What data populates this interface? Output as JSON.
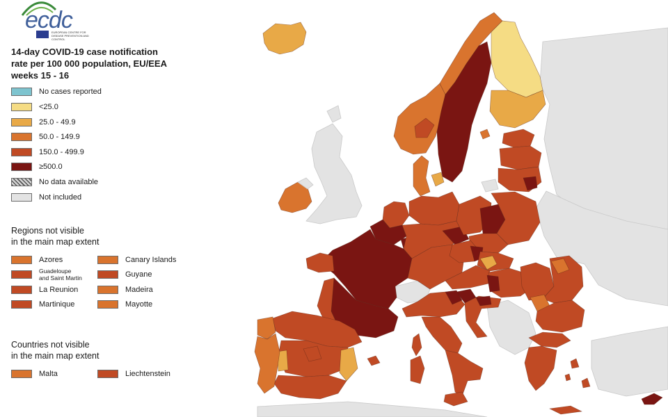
{
  "logo": {
    "name": "ecdc",
    "subtitle": "EUROPEAN CENTRE FOR DISEASE PREVENTION AND CONTROL"
  },
  "title": "14-day COVID-19 case notification\nrate per 100 000 population, EU/EEA\nweeks 15 - 16",
  "legend": [
    {
      "label": "No cases reported",
      "color": "#7ec4cf",
      "pattern": false
    },
    {
      "label": "<25.0",
      "color": "#f5dc84",
      "pattern": false
    },
    {
      "label": "25.0 - 49.9",
      "color": "#e8a947",
      "pattern": false
    },
    {
      "label": "50.0 - 149.9",
      "color": "#d9742e",
      "pattern": false
    },
    {
      "label": "150.0 - 499.9",
      "color": "#c04a24",
      "pattern": false
    },
    {
      "label": "≥500.0",
      "color": "#7a1512",
      "pattern": false
    },
    {
      "label": "No data available",
      "color": "#bdbdbd",
      "pattern": true
    },
    {
      "label": "Not included",
      "color": "#e3e3e3",
      "pattern": false
    }
  ],
  "regions_title": "Regions not visible\nin the main map extent",
  "regions_left": [
    {
      "label": "Azores",
      "color": "#d9742e",
      "small": false
    },
    {
      "label": "Guadeloupe\nand Saint Martin",
      "color": "#c04a24",
      "small": true
    },
    {
      "label": "La Reunion",
      "color": "#c04a24",
      "small": false
    },
    {
      "label": "Martinique",
      "color": "#c04a24",
      "small": false
    }
  ],
  "regions_right": [
    {
      "label": "Canary Islands",
      "color": "#d9742e",
      "small": false
    },
    {
      "label": "Guyane",
      "color": "#c04a24",
      "small": false
    },
    {
      "label": "Madeira",
      "color": "#d9742e",
      "small": false
    },
    {
      "label": "Mayotte",
      "color": "#d9742e",
      "small": false
    }
  ],
  "countries_title": "Countries not visible\nin the main map extent",
  "countries": [
    {
      "label": "Malta",
      "color": "#d9742e"
    },
    {
      "label": "Liechtenstein",
      "color": "#c04a24"
    }
  ],
  "palette": {
    "none": "#7ec4cf",
    "lt25": "#f5dc84",
    "r25": "#e8a947",
    "r50": "#d9742e",
    "r150": "#c04a24",
    "ge500": "#7a1512",
    "not_included": "#e3e3e3"
  }
}
